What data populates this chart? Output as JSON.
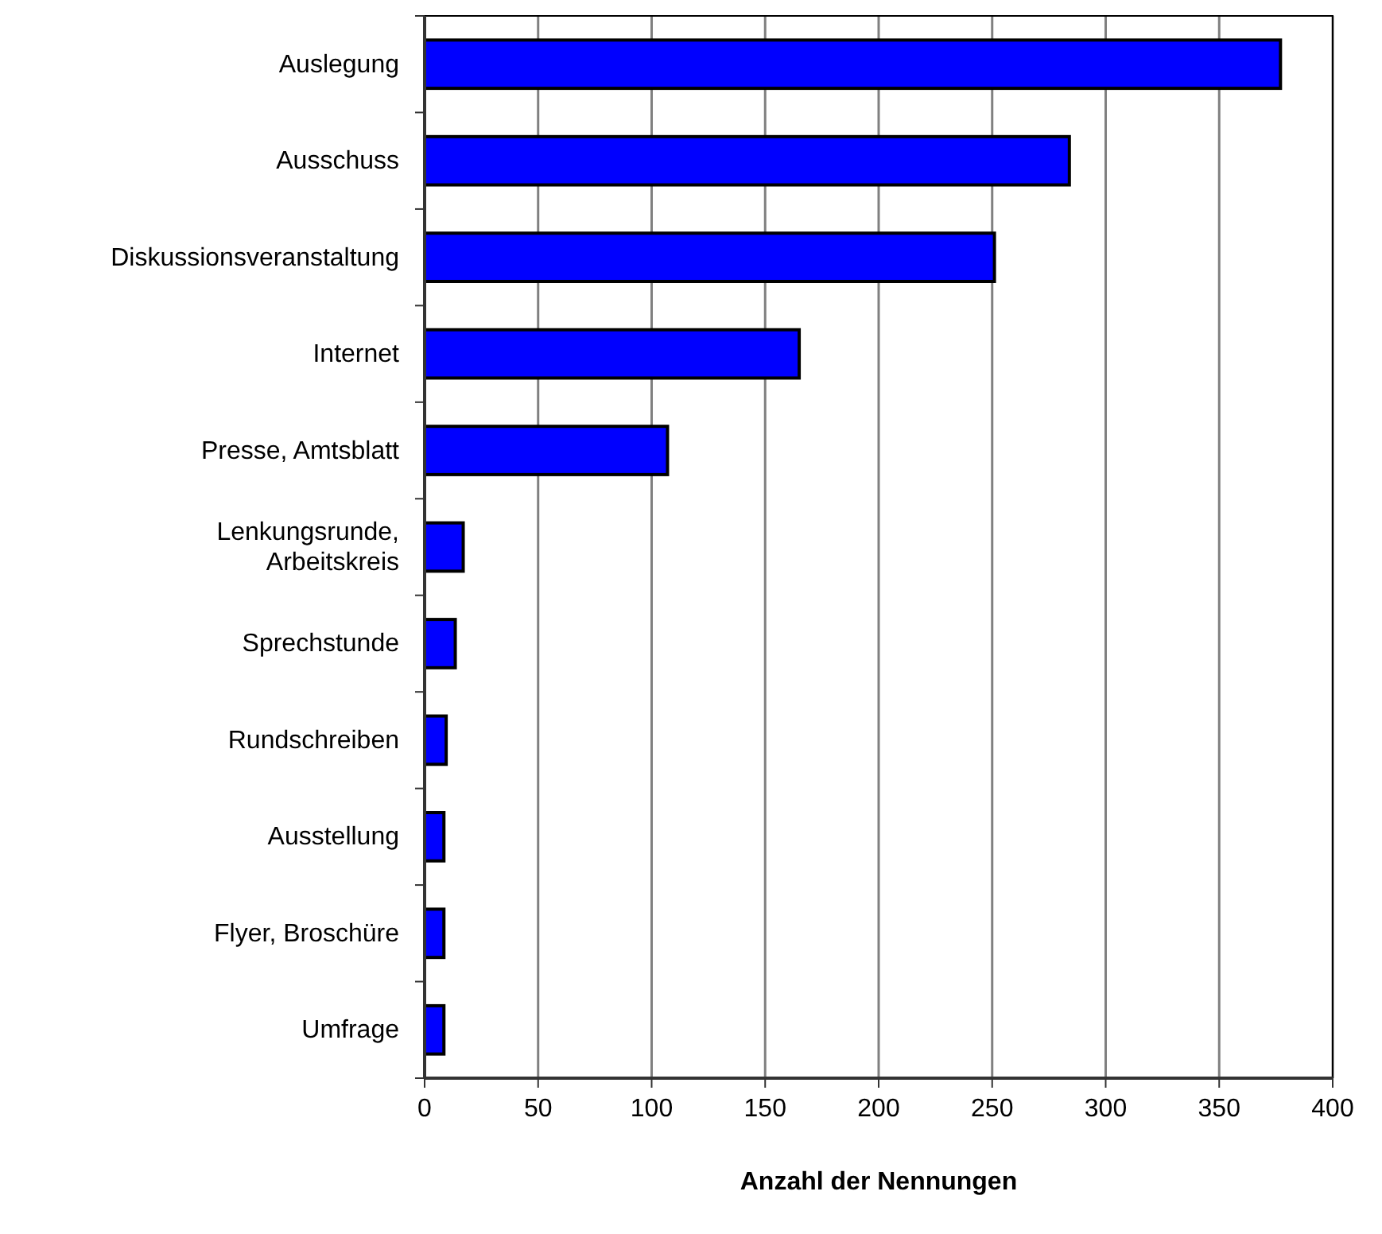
{
  "chart_data": {
    "type": "bar",
    "orientation": "horizontal",
    "xlabel": "Anzahl der Nennungen",
    "categories": [
      "Auslegung",
      "Ausschuss",
      "Diskussionsveranstaltung",
      "Internet",
      "Presse, Amtsblatt",
      "Lenkungsrunde, Arbeitskreis",
      "Sprechstunde",
      "Rundschreiben",
      "Ausstellung",
      "Flyer, Broschüre",
      "Umfrage"
    ],
    "values": [
      377,
      284,
      251,
      165,
      107,
      17,
      13.5,
      9.5,
      8.5,
      8.5,
      8.5
    ],
    "color": "#0000ff",
    "xlim": [
      0,
      400
    ],
    "xticks": [
      0,
      50,
      100,
      150,
      200,
      250,
      300,
      350,
      400
    ],
    "grid": "x"
  }
}
